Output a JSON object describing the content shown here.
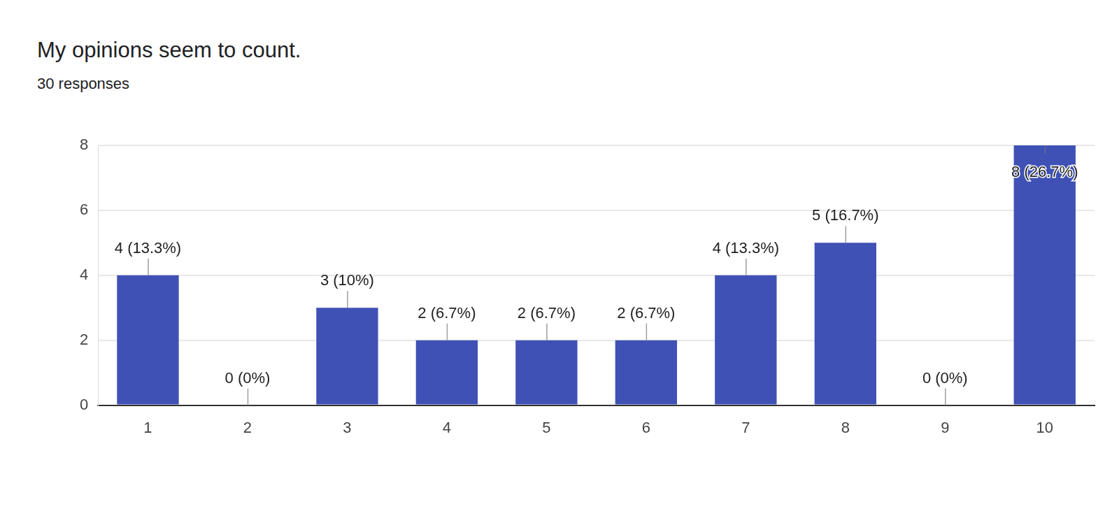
{
  "chart_data": {
    "type": "bar",
    "title": "My opinions seem to count.",
    "subtitle": "30 responses",
    "categories": [
      "1",
      "2",
      "3",
      "4",
      "5",
      "6",
      "7",
      "8",
      "9",
      "10"
    ],
    "values": [
      4,
      0,
      3,
      2,
      2,
      2,
      4,
      5,
      0,
      8
    ],
    "value_labels": [
      "4 (13.3%)",
      "0 (0%)",
      "3 (10%)",
      "2 (6.7%)",
      "2 (6.7%)",
      "2 (6.7%)",
      "4 (13.3%)",
      "5 (16.7%)",
      "0 (0%)",
      "8 (26.7%)"
    ],
    "color": "#3f51b5",
    "ylim": [
      0,
      8
    ],
    "yticks": [
      0,
      2,
      4,
      6,
      8
    ],
    "grid": true,
    "data_labels": true
  }
}
